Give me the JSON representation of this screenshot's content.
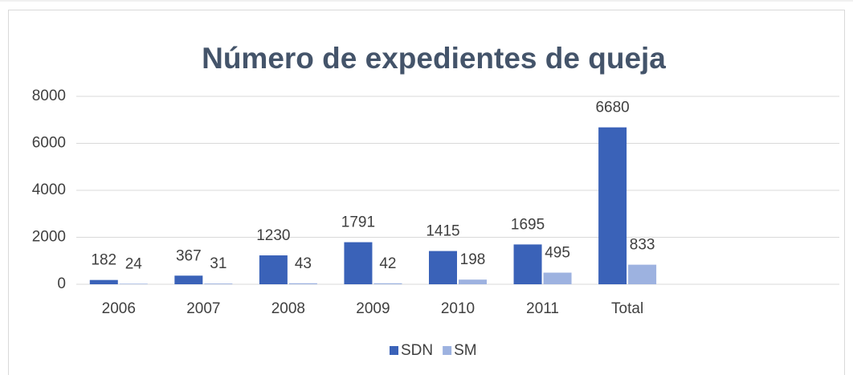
{
  "chart_data": {
    "type": "bar",
    "title": "Número de expedientes de queja",
    "categories": [
      "2006",
      "2007",
      "2008",
      "2009",
      "2010",
      "2011",
      "Total",
      null,
      null
    ],
    "series": [
      {
        "name": "SDN",
        "color": "#3a62b8",
        "values": [
          182,
          367,
          1230,
          1791,
          1415,
          1695,
          6680,
          null,
          null
        ]
      },
      {
        "name": "SM",
        "color": "#9db2e0",
        "values": [
          24,
          31,
          43,
          42,
          198,
          495,
          833,
          null,
          null
        ]
      }
    ],
    "ylim": [
      0,
      8000
    ],
    "yticks": [
      0,
      2000,
      4000,
      6000,
      8000
    ],
    "grid": true,
    "legend": "bottom"
  }
}
